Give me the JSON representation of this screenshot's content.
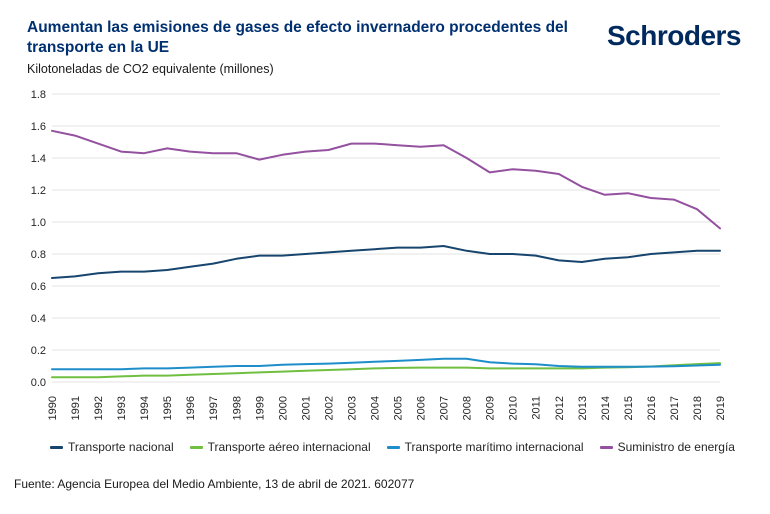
{
  "header": {
    "logo": "Schroders"
  },
  "footer": {
    "source": "Fuente: Agencia Europea del Medio Ambiente, 13 de abril de 2021. 602077"
  },
  "colors": {
    "title": "#003070",
    "logo": "#002a5e",
    "grid": "#e3e3e3",
    "axis_text": "#262626"
  },
  "chart_data": {
    "type": "line",
    "title": "Aumentan las emisiones de gases de efecto invernadero procedentes del transporte en la UE",
    "subtitle": "Kilotoneladas de CO2 equivalente (millones)",
    "ylabel": "Kilotoneladas de CO2 equivalente (millones)",
    "ylim": [
      0.0,
      1.8
    ],
    "ytick_step": 0.2,
    "grid": "horizontal",
    "legend_position": "bottom",
    "x": [
      1990,
      1991,
      1992,
      1993,
      1994,
      1995,
      1996,
      1997,
      1998,
      1999,
      2000,
      2001,
      2002,
      2003,
      2004,
      2005,
      2006,
      2007,
      2008,
      2009,
      2010,
      2011,
      2012,
      2013,
      2014,
      2015,
      2016,
      2017,
      2018,
      2019
    ],
    "series": [
      {
        "name": "Transporte nacional",
        "color": "#17456e",
        "values": [
          0.65,
          0.66,
          0.68,
          0.69,
          0.69,
          0.7,
          0.72,
          0.74,
          0.77,
          0.79,
          0.79,
          0.8,
          0.81,
          0.82,
          0.83,
          0.84,
          0.84,
          0.85,
          0.82,
          0.8,
          0.8,
          0.79,
          0.76,
          0.75,
          0.77,
          0.78,
          0.8,
          0.81,
          0.82,
          0.82
        ]
      },
      {
        "name": "Transporte aéreo internacional",
        "color": "#70bf41",
        "values": [
          0.03,
          0.03,
          0.03,
          0.035,
          0.04,
          0.04,
          0.045,
          0.05,
          0.055,
          0.06,
          0.065,
          0.07,
          0.075,
          0.08,
          0.085,
          0.088,
          0.09,
          0.09,
          0.09,
          0.085,
          0.085,
          0.085,
          0.085,
          0.085,
          0.09,
          0.092,
          0.097,
          0.105,
          0.112,
          0.118
        ]
      },
      {
        "name": "Transporte marítimo internacional",
        "color": "#1e8ecb",
        "values": [
          0.08,
          0.08,
          0.08,
          0.08,
          0.085,
          0.085,
          0.09,
          0.095,
          0.1,
          0.1,
          0.108,
          0.112,
          0.115,
          0.12,
          0.127,
          0.132,
          0.138,
          0.145,
          0.145,
          0.123,
          0.115,
          0.111,
          0.1,
          0.095,
          0.095,
          0.095,
          0.096,
          0.098,
          0.103,
          0.108
        ]
      },
      {
        "name": "Suministro de energía",
        "color": "#94519f",
        "values": [
          1.57,
          1.54,
          1.49,
          1.44,
          1.43,
          1.46,
          1.44,
          1.43,
          1.43,
          1.39,
          1.42,
          1.44,
          1.45,
          1.49,
          1.49,
          1.48,
          1.47,
          1.48,
          1.4,
          1.31,
          1.33,
          1.32,
          1.3,
          1.22,
          1.17,
          1.18,
          1.15,
          1.14,
          1.08,
          0.96
        ]
      }
    ]
  }
}
